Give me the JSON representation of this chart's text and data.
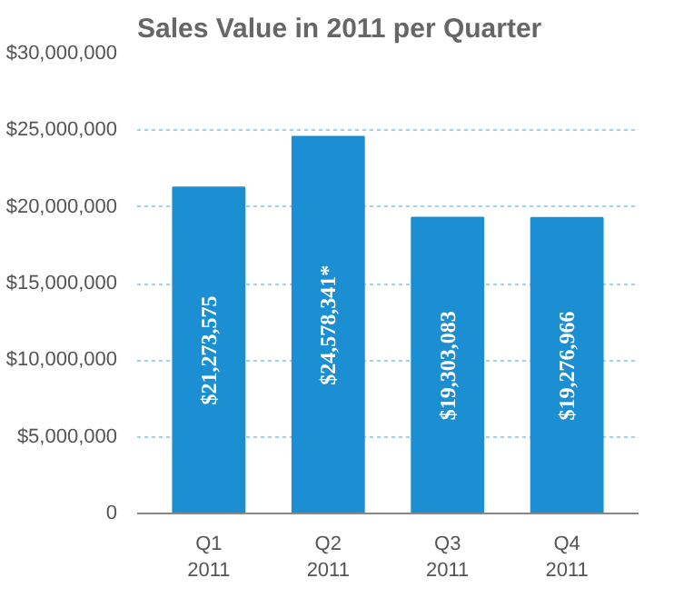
{
  "chart_data": {
    "type": "bar",
    "title": "Sales Value in 2011 per Quarter",
    "categories": [
      "Q1\n2011",
      "Q2\n2011",
      "Q3\n2011",
      "Q4\n2011"
    ],
    "values": [
      21273575,
      24578341,
      19303083,
      19276966
    ],
    "value_labels": [
      "$21,273,575",
      "$24,578,341*",
      "$19,303,083",
      "$19,276,966"
    ],
    "color": "#1b8fd2",
    "ylim": [
      0,
      30000000
    ],
    "yticks": [
      {
        "value": 0,
        "label": "0"
      },
      {
        "value": 5000000,
        "label": "$5,000,000"
      },
      {
        "value": 10000000,
        "label": "$10,000,000"
      },
      {
        "value": 15000000,
        "label": "$15,000,000"
      },
      {
        "value": 20000000,
        "label": "$20,000,000"
      },
      {
        "value": 25000000,
        "label": "$25,000,000"
      },
      {
        "value": 30000000,
        "label": "$30,000,000"
      }
    ],
    "grid": "y"
  }
}
